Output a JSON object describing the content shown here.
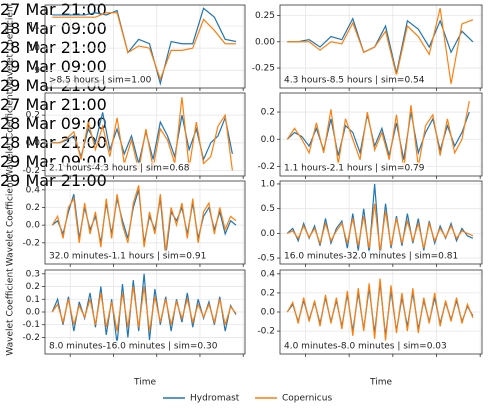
{
  "chart_data": {
    "type": "line",
    "ylabel": "Wavelet Coefficient",
    "xlabel": "Time",
    "legend": "lower center",
    "grid": true,
    "series": [
      {
        "name": "Hydromast",
        "color": "#1f77b4"
      },
      {
        "name": "Copernicus",
        "color": "#ff7f0e"
      }
    ],
    "xlim": [
      14,
      69.5
    ],
    "xticks": [
      {
        "value": 21,
        "label": "27 Mar\n21:00"
      },
      {
        "value": 33,
        "label": "28 Mar\n09:00"
      },
      {
        "value": 45,
        "label": "28 Mar\n21:00"
      },
      {
        "value": 57,
        "label": "29 Mar\n09:00"
      },
      {
        "value": 69,
        "label": "29 Mar\n21:00"
      }
    ],
    "panels": [
      {
        "label": ">8.5 hours | sim=1.00",
        "ylim": [
          8.2,
          11.95
        ],
        "yticks": [
          9,
          10,
          11
        ],
        "x": [
          16,
          19,
          22,
          25,
          28,
          31,
          34,
          37,
          40,
          43,
          46,
          49,
          52,
          55,
          58,
          61,
          64,
          67
        ],
        "series_values": [
          [
            11.5,
            11.5,
            11.5,
            11.5,
            11.6,
            11.5,
            11.7,
            9.8,
            10.4,
            10.2,
            8.4,
            10.3,
            10.2,
            10.2,
            11.8,
            11.4,
            10.4,
            10.3
          ],
          [
            11.4,
            11.4,
            11.4,
            11.4,
            11.4,
            11.6,
            11.6,
            9.8,
            10.1,
            10.0,
            8.6,
            9.9,
            9.9,
            10.0,
            11.3,
            10.8,
            10.2,
            10.2
          ]
        ]
      },
      {
        "label": "4.3 hours-8.5 hours | sim=0.54",
        "ylim": [
          -0.44,
          0.35
        ],
        "yticks": [
          -0.25,
          {
            "value": 0,
            "label": "0.00"
          },
          0.25
        ],
        "x": [
          16,
          19,
          22,
          25,
          28,
          31,
          34,
          37,
          40,
          43,
          46,
          49,
          52,
          55,
          58,
          61,
          64,
          67
        ],
        "series_values": [
          [
            0,
            0,
            0.02,
            -0.05,
            0.05,
            0.02,
            0.22,
            -0.1,
            -0.05,
            0.15,
            -0.3,
            0.2,
            0.12,
            -0.05,
            0.2,
            -0.1,
            0.1,
            0.0
          ],
          [
            0,
            0.0,
            0.0,
            -0.08,
            0.0,
            -0.02,
            0.18,
            -0.1,
            -0.05,
            0.1,
            -0.32,
            0.15,
            0.05,
            -0.12,
            0.32,
            -0.4,
            0.17,
            0.21
          ]
        ]
      },
      {
        "label": "2.1 hours-4.3 hours | sim=0.68",
        "ylim": [
          -0.24,
          0.36
        ],
        "yticks": [
          -0.2,
          {
            "value": 0,
            "label": "0.0"
          },
          0.2
        ],
        "x": [
          16,
          18,
          20,
          22,
          24,
          26,
          28,
          30,
          32,
          34,
          36,
          38,
          40,
          42,
          44,
          46,
          48,
          50,
          52,
          54,
          56,
          58,
          60,
          62,
          64,
          66
        ],
        "series_values": [
          [
            0,
            0,
            0.02,
            0.05,
            -0.1,
            0.1,
            0.0,
            0.22,
            -0.05,
            0.1,
            -0.08,
            0.05,
            -0.15,
            0.08,
            -0.12,
            0.15,
            0.05,
            -0.1,
            0.2,
            -0.05,
            0.1,
            -0.12,
            0.0,
            0.05,
            0.18,
            -0.08
          ],
          [
            0,
            0,
            0.03,
            0.08,
            -0.12,
            0.15,
            -0.05,
            0.12,
            -0.1,
            0.18,
            -0.15,
            0.02,
            -0.2,
            0.1,
            -0.18,
            0.1,
            0.02,
            -0.15,
            0.33,
            -0.18,
            0.15,
            -0.15,
            -0.1,
            0.12,
            0.2,
            -0.2
          ]
        ]
      },
      {
        "label": "1.1 hours-2.1 hours | sim=0.79",
        "ylim": [
          -0.27,
          0.34
        ],
        "yticks": [
          -0.2,
          {
            "value": 0,
            "label": "0.0"
          },
          0.2
        ],
        "x": [
          16,
          18,
          20,
          22,
          24,
          26,
          28,
          30,
          32,
          34,
          36,
          38,
          40,
          42,
          44,
          46,
          48,
          50,
          52,
          54,
          56,
          58,
          60,
          62,
          64,
          66
        ],
        "series_values": [
          [
            0,
            0.05,
            0.02,
            -0.05,
            0.08,
            -0.08,
            0.15,
            -0.12,
            0.1,
            0.05,
            -0.1,
            0.18,
            -0.05,
            0.08,
            -0.12,
            0.12,
            -0.15,
            0.2,
            -0.1,
            0.05,
            0.15,
            -0.08,
            0.1,
            -0.05,
            0.05,
            0.2
          ],
          [
            0,
            0.08,
            0.0,
            -0.1,
            0.12,
            -0.1,
            0.22,
            -0.18,
            0.15,
            0.0,
            -0.15,
            0.2,
            -0.08,
            0.05,
            -0.15,
            0.18,
            -0.22,
            0.25,
            -0.2,
            0.1,
            0.18,
            -0.12,
            0.15,
            -0.1,
            0.0,
            0.28
          ]
        ]
      },
      {
        "label": "32.0 minutes-1.1 hours | sim=0.91",
        "ylim": [
          -0.44,
          0.5
        ],
        "yticks": [
          -0.2,
          {
            "value": 0,
            "label": "0.0"
          },
          0.2,
          0.4
        ],
        "x": [
          16,
          17.5,
          19,
          20.5,
          22,
          23.5,
          25,
          26.5,
          28,
          29.5,
          31,
          32.5,
          34,
          35.5,
          37,
          38.5,
          40,
          41.5,
          43,
          44.5,
          46,
          47.5,
          49,
          50.5,
          52,
          53.5,
          55,
          56.5,
          58,
          59.5,
          61,
          62.5,
          64,
          65.5,
          67
        ],
        "series_values": [
          [
            0,
            0.05,
            -0.1,
            0.15,
            0.35,
            -0.15,
            0.2,
            -0.05,
            0.1,
            -0.2,
            0.25,
            -0.1,
            0.3,
            0.05,
            -0.15,
            0.2,
            0.4,
            -0.2,
            0.1,
            -0.05,
            0.3,
            -0.35,
            0.15,
            0.05,
            0.2,
            -0.1,
            0.25,
            -0.15,
            0.1,
            0.2,
            -0.05,
            0.15,
            -0.1,
            0.05,
            0.0
          ],
          [
            0,
            0.1,
            -0.15,
            0.2,
            0.3,
            -0.2,
            0.25,
            -0.1,
            0.15,
            -0.25,
            0.3,
            -0.15,
            0.35,
            0.0,
            -0.2,
            0.25,
            0.45,
            -0.25,
            0.15,
            -0.1,
            0.35,
            -0.3,
            0.2,
            0.0,
            0.25,
            -0.15,
            0.3,
            -0.2,
            0.15,
            0.25,
            -0.1,
            0.2,
            -0.05,
            0.1,
            0.05
          ]
        ]
      },
      {
        "label": "16.0 minutes-32.0 minutes | sim=0.81",
        "ylim": [
          -0.62,
          1.06
        ],
        "yticks": [
          -0.5,
          {
            "value": 0,
            "label": "0.0"
          },
          0.5,
          {
            "value": 1,
            "label": "1.0"
          }
        ],
        "x": [
          16,
          17.5,
          19,
          20.5,
          22,
          23.5,
          25,
          26.5,
          28,
          29.5,
          31,
          32.5,
          34,
          35.5,
          37,
          38.5,
          40,
          41.5,
          43,
          44.5,
          46,
          47.5,
          49,
          50.5,
          52,
          53.5,
          55,
          56.5,
          58,
          59.5,
          61,
          62.5,
          64,
          65.5,
          67
        ],
        "series_values": [
          [
            0,
            0.1,
            -0.15,
            0.2,
            -0.1,
            0.15,
            -0.25,
            0.3,
            -0.2,
            0.1,
            0.25,
            -0.3,
            0.4,
            -0.35,
            0.5,
            -0.4,
            1.0,
            -0.45,
            0.6,
            -0.3,
            0.35,
            -0.25,
            0.4,
            -0.2,
            0.3,
            -0.35,
            0.25,
            -0.2,
            0.15,
            -0.1,
            0.2,
            -0.15,
            0.1,
            -0.05,
            -0.1
          ],
          [
            0,
            0.05,
            -0.1,
            0.15,
            -0.08,
            0.1,
            -0.2,
            0.2,
            -0.15,
            0.05,
            0.2,
            -0.2,
            0.3,
            -0.25,
            0.35,
            -0.3,
            0.6,
            -0.35,
            0.45,
            -0.25,
            0.3,
            -0.2,
            0.25,
            -0.15,
            0.2,
            -0.3,
            0.2,
            -0.15,
            0.1,
            -0.08,
            0.15,
            -0.1,
            0.05,
            0.0,
            -0.05
          ]
        ]
      },
      {
        "label": "8.0 minutes-16.0 minutes | sim=0.30",
        "ylim": [
          -0.33,
          0.33
        ],
        "yticks": [
          -0.2,
          -0.1,
          {
            "value": 0,
            "label": "0.0"
          },
          0.1,
          0.2,
          0.3
        ],
        "x": [
          16,
          17.5,
          19,
          20.5,
          22,
          23.5,
          25,
          26.5,
          28,
          29.5,
          31,
          32.5,
          34,
          35.5,
          37,
          38.5,
          40,
          41.5,
          43,
          44.5,
          46,
          47.5,
          49,
          50.5,
          52,
          53.5,
          55,
          56.5,
          58,
          59.5,
          61,
          62.5,
          64,
          65.5,
          67
        ],
        "series_values": [
          [
            0,
            0.1,
            -0.1,
            0.12,
            -0.15,
            0.08,
            -0.05,
            0.15,
            -0.12,
            0.2,
            -0.18,
            0.1,
            -0.25,
            0.22,
            -0.2,
            0.25,
            -0.15,
            0.3,
            -0.22,
            0.18,
            -0.1,
            0.12,
            -0.15,
            0.1,
            -0.08,
            0.15,
            -0.12,
            0.1,
            -0.05,
            0.08,
            -0.1,
            0.12,
            -0.15,
            0.05,
            -0.02
          ],
          [
            0,
            0.06,
            -0.08,
            0.1,
            -0.1,
            0.05,
            -0.04,
            0.1,
            -0.1,
            0.15,
            -0.12,
            0.08,
            -0.15,
            0.15,
            -0.12,
            0.2,
            -0.12,
            0.2,
            -0.15,
            0.12,
            -0.08,
            0.1,
            -0.1,
            0.08,
            -0.05,
            0.1,
            -0.08,
            0.06,
            -0.04,
            0.06,
            -0.08,
            0.1,
            -0.1,
            0.04,
            -0.01
          ]
        ]
      },
      {
        "label": "4.0 minutes-8.0 minutes | sim=0.03",
        "ylim": [
          -0.44,
          0.44
        ],
        "yticks": [
          -0.2,
          {
            "value": 0,
            "label": "0.0"
          },
          0.2,
          0.4
        ],
        "x": [
          16,
          17.5,
          19,
          20.5,
          22,
          23.5,
          25,
          26.5,
          28,
          29.5,
          31,
          32.5,
          34,
          35.5,
          37,
          38.5,
          40,
          41.5,
          43,
          44.5,
          46,
          47.5,
          49,
          50.5,
          52,
          53.5,
          55,
          56.5,
          58,
          59.5,
          61,
          62.5,
          64,
          65.5,
          67
        ],
        "series_values": [
          [
            0,
            0.08,
            -0.1,
            0.12,
            -0.08,
            0.1,
            -0.12,
            0.15,
            -0.1,
            0.12,
            -0.15,
            0.18,
            -0.2,
            0.2,
            -0.18,
            0.25,
            -0.22,
            0.3,
            -0.25,
            0.22,
            -0.2,
            0.15,
            -0.15,
            0.2,
            -0.18,
            0.12,
            -0.1,
            0.15,
            -0.12,
            0.1,
            -0.08,
            0.12,
            -0.1,
            0.06,
            -0.04
          ],
          [
            0,
            0.1,
            -0.12,
            0.15,
            -0.1,
            0.12,
            -0.15,
            0.18,
            -0.12,
            0.15,
            -0.18,
            0.22,
            -0.25,
            0.25,
            -0.2,
            0.3,
            -0.28,
            0.35,
            -0.3,
            0.28,
            -0.22,
            0.2,
            -0.2,
            0.25,
            -0.22,
            0.15,
            -0.12,
            0.2,
            -0.15,
            0.12,
            -0.1,
            0.15,
            -0.12,
            0.08,
            -0.06
          ]
        ]
      }
    ]
  }
}
